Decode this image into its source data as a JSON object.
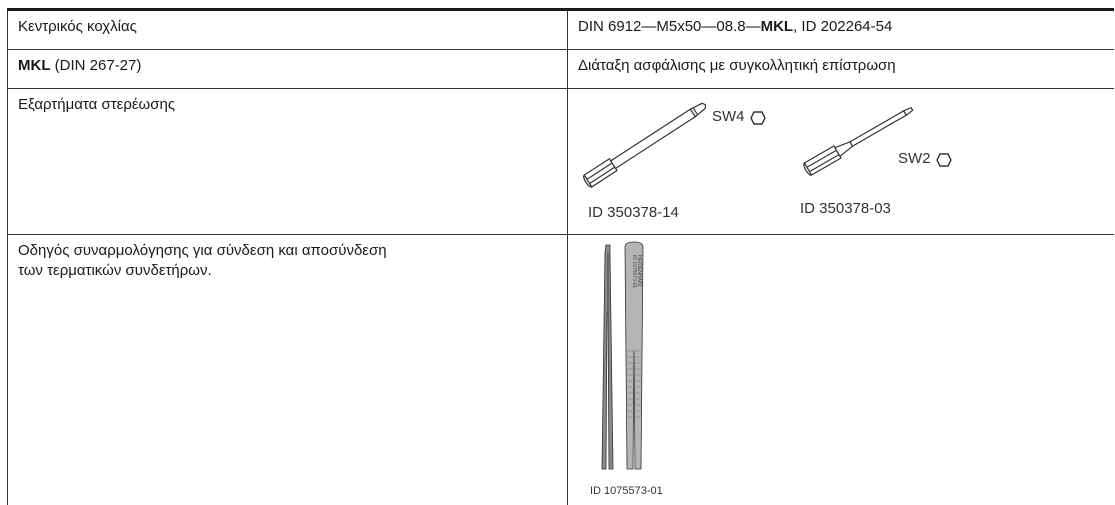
{
  "rows": [
    {
      "label": "Κεντρικός κοχλίας",
      "value_prefix": "DIN 6912—M5x50—08.8—",
      "value_bold": "MKL",
      "value_suffix": ", ID 202264-54"
    },
    {
      "label_bold": "MKL",
      "label_rest": " (DIN 267-27)",
      "value": "Διάταξη ασφάλισης με συγκολλητική επίστρωση"
    },
    {
      "label": "Εξαρτήματα στερέωσης",
      "tools": [
        {
          "size": "SW4",
          "id": "ID 350378-14"
        },
        {
          "size": "SW2",
          "id": "ID 350378-03"
        }
      ]
    },
    {
      "label_line1": "Οδηγός συναρμολόγησης για σύνδεση και αποσύνδεση",
      "label_line2": "των τερματικών συνδετήρων.",
      "tool_id": "ID 1075573-01",
      "imprint_line1": "ID 1075573-01",
      "imprint_line2": "HEIDENHAIN"
    }
  ]
}
